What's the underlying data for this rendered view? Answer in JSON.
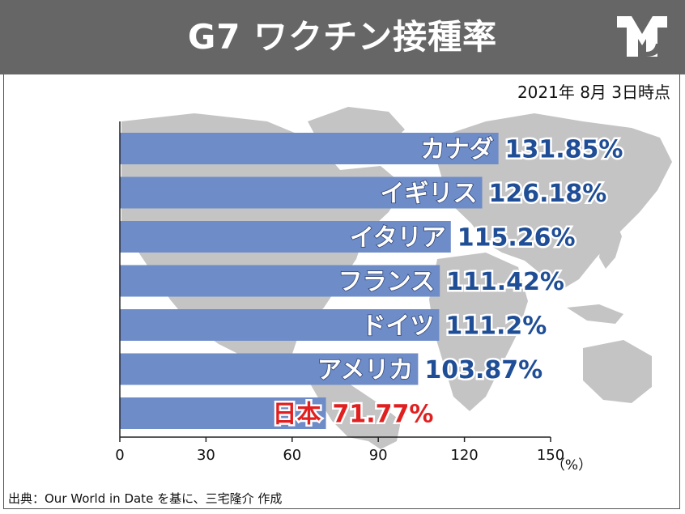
{
  "header": {
    "title": "G7 ワクチン接種率",
    "bg_color": "#666666"
  },
  "as_of": "2021年 8月 3日時点",
  "source": "出典：Our World in Date を基に、三宅隆介 作成",
  "colors": {
    "bar": "#6e8cc8",
    "value_text": "#1f4e96",
    "highlight_text": "#e02020",
    "map": "#c4c4c4"
  },
  "chart_data": {
    "type": "bar",
    "orientation": "horizontal",
    "categories": [
      "カナダ",
      "イギリス",
      "イタリア",
      "フランス",
      "ドイツ",
      "アメリカ",
      "日本"
    ],
    "values": [
      131.85,
      126.18,
      115.26,
      111.42,
      111.2,
      103.87,
      71.77
    ],
    "value_labels": [
      "131.85%",
      "126.18%",
      "115.26%",
      "111.42%",
      "111.2%",
      "103.87%",
      "71.77%"
    ],
    "highlight": "日本",
    "xlim": [
      0,
      150
    ],
    "xticks": [
      0,
      30,
      60,
      90,
      120,
      150
    ],
    "xunit": "（%）",
    "grid": false
  }
}
